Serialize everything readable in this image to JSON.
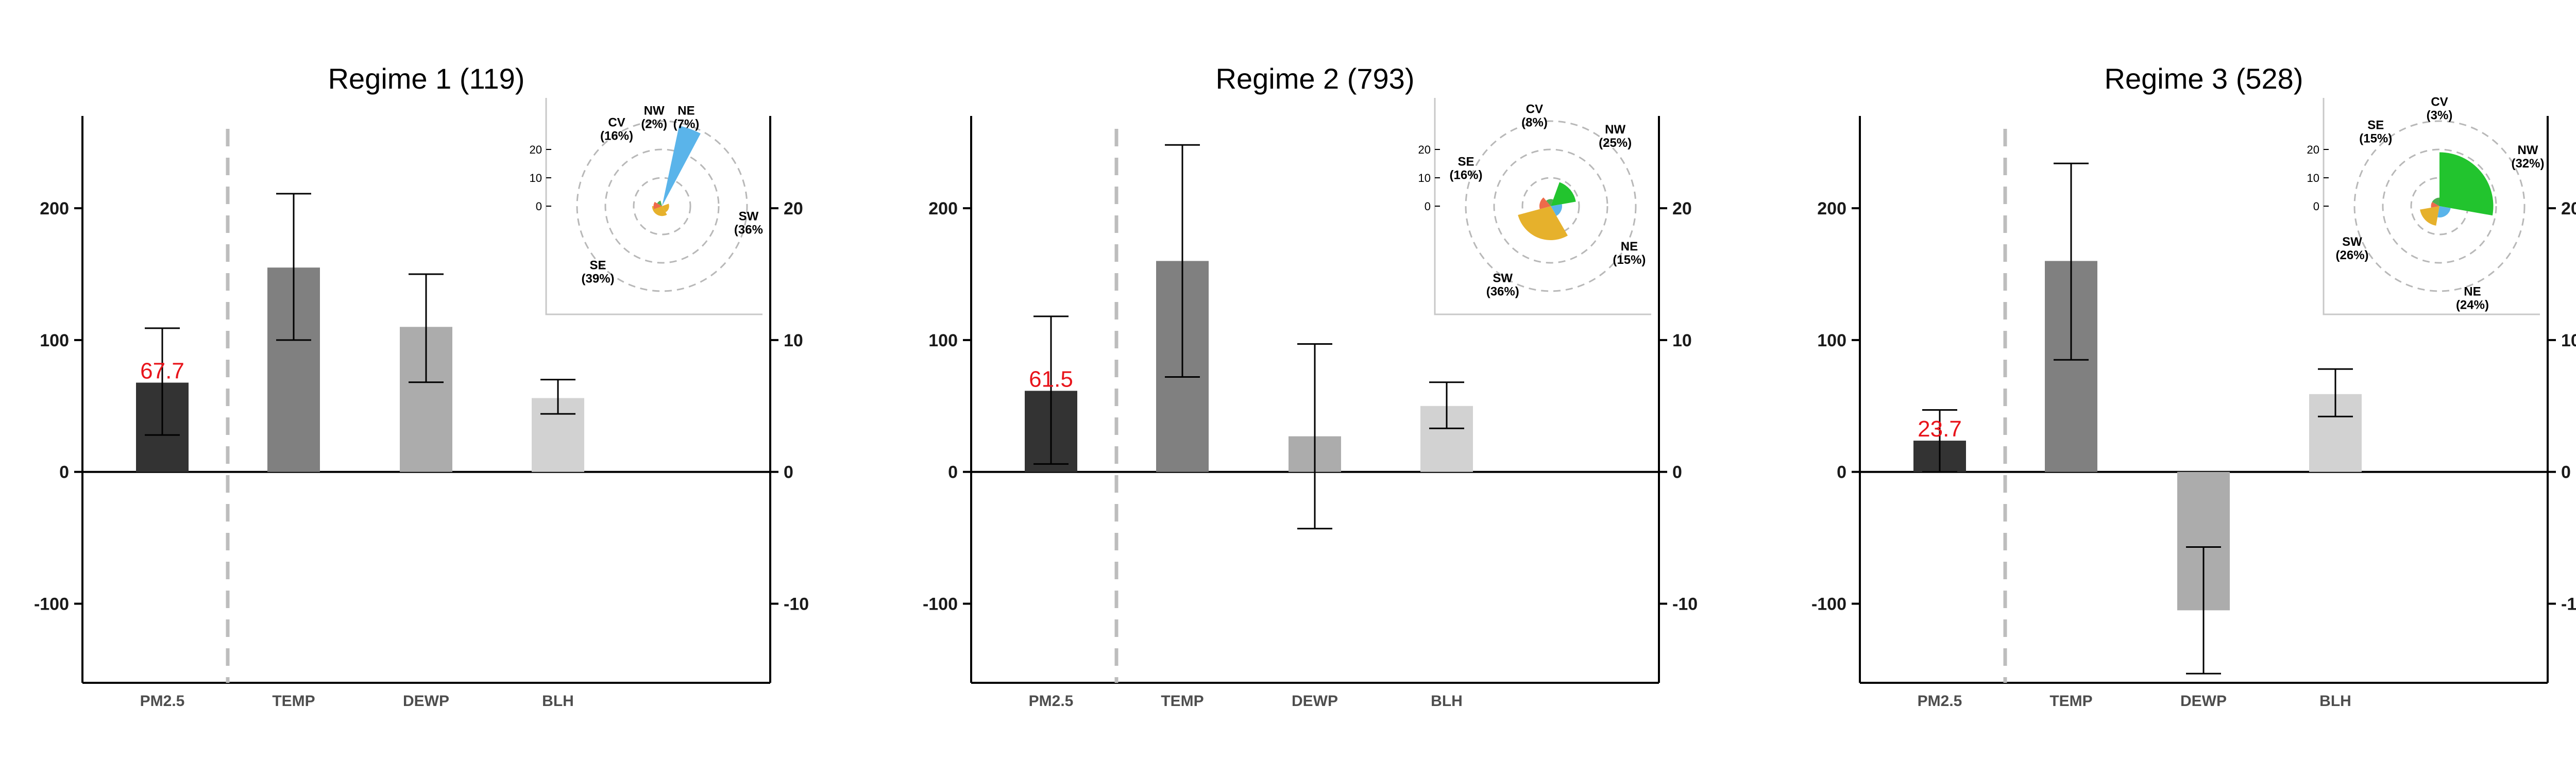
{
  "chart_data": [
    {
      "type": "bar",
      "title": "Regime 1 (119)",
      "categories": [
        "PM2.5",
        "TEMP",
        "DEWP",
        "BLH"
      ],
      "values": [
        67.7,
        155,
        110,
        56
      ],
      "error_low": [
        28,
        100,
        68,
        44
      ],
      "error_high": [
        109,
        211,
        150,
        70
      ],
      "value_label": "67.7",
      "y_left_ticks": [
        "200",
        "100",
        "0",
        "-100"
      ],
      "y_right_ticks": [
        "20",
        "10",
        "0",
        "-10"
      ],
      "ylim": [
        -160,
        270
      ],
      "y_right_lim": [
        -16,
        27
      ],
      "bar_colors": [
        "#333333",
        "#808080",
        "#acacac",
        "#d2d2d2"
      ],
      "inset": {
        "type": "rose",
        "rmax": 30,
        "r_ticks": [
          "20",
          "10",
          "0"
        ],
        "sectors": [
          {
            "start": 12,
            "end": 28,
            "r": 29,
            "color": "#5ab4ea"
          },
          {
            "start": 70,
            "end": 150,
            "r": 2.5,
            "color": "#e6b12c"
          },
          {
            "start": 150,
            "end": 270,
            "r": 3.5,
            "color": "#e6b12c"
          },
          {
            "start": 250,
            "end": 300,
            "r": 3,
            "color": "#ee6a4a"
          },
          {
            "start": 300,
            "end": 345,
            "r": 2,
            "color": "#4caf50"
          }
        ],
        "labels": [
          {
            "name": "NW",
            "pct": "(2%)",
            "angle": 355,
            "r": 32
          },
          {
            "name": "NE",
            "pct": "(7%)",
            "angle": 15,
            "r": 33
          },
          {
            "name": "CV",
            "pct": "(16%)",
            "angle": 330,
            "r": 32
          },
          {
            "name": "SW",
            "pct": "(36%",
            "angle": 100,
            "r": 31
          },
          {
            "name": "SE",
            "pct": "(39%)",
            "angle": 225,
            "r": 32
          }
        ]
      }
    },
    {
      "type": "bar",
      "title": "Regime 2 (793)",
      "categories": [
        "PM2.5",
        "TEMP",
        "DEWP",
        "BLH"
      ],
      "values": [
        61.5,
        160,
        27,
        50
      ],
      "error_low": [
        6,
        72,
        -43,
        33
      ],
      "error_high": [
        118,
        248,
        97,
        68
      ],
      "value_label": "61.5",
      "y_left_ticks": [
        "200",
        "100",
        "0",
        "-100"
      ],
      "y_right_ticks": [
        "20",
        "10",
        "0",
        "-10"
      ],
      "ylim": [
        -160,
        270
      ],
      "y_right_lim": [
        -16,
        27
      ],
      "bar_colors": [
        "#333333",
        "#808080",
        "#acacac",
        "#d2d2d2"
      ],
      "inset": {
        "type": "rose",
        "rmax": 30,
        "r_ticks": [
          "20",
          "10",
          "0"
        ],
        "sectors": [
          {
            "start": 20,
            "end": 80,
            "r": 9,
            "color": "#22c42e"
          },
          {
            "start": 80,
            "end": 150,
            "r": 4,
            "color": "#5ab4ea"
          },
          {
            "start": 150,
            "end": 255,
            "r": 12,
            "color": "#e6b12c"
          },
          {
            "start": 255,
            "end": 320,
            "r": 4,
            "color": "#ee6a4a"
          },
          {
            "start": 320,
            "end": 20,
            "r": 2.5,
            "color": "#4caf50"
          }
        ],
        "labels": [
          {
            "name": "CV",
            "pct": "(8%)",
            "angle": 350,
            "r": 33
          },
          {
            "name": "NW",
            "pct": "(25%)",
            "angle": 42,
            "r": 34
          },
          {
            "name": "SE",
            "pct": "(16%)",
            "angle": 295,
            "r": 33
          },
          {
            "name": "NE",
            "pct": "(15%)",
            "angle": 120,
            "r": 32
          },
          {
            "name": "SW",
            "pct": "(36%)",
            "angle": 212,
            "r": 32
          }
        ]
      }
    },
    {
      "type": "bar",
      "title": "Regime 3 (528)",
      "categories": [
        "PM2.5",
        "TEMP",
        "DEWP",
        "BLH"
      ],
      "values": [
        23.7,
        160,
        -105,
        59
      ],
      "error_low": [
        0,
        85,
        -153,
        42
      ],
      "error_high": [
        47,
        234,
        -57,
        78
      ],
      "value_label": "23.7",
      "y_left_ticks": [
        "200",
        "100",
        "0",
        "-100"
      ],
      "y_right_ticks": [
        "20",
        "10",
        "0",
        "-10"
      ],
      "ylim": [
        -160,
        270
      ],
      "y_right_lim": [
        -16,
        27
      ],
      "bar_colors": [
        "#333333",
        "#808080",
        "#acacac",
        "#d2d2d2"
      ],
      "inset": {
        "type": "rose",
        "rmax": 30,
        "r_ticks": [
          "20",
          "10",
          "0"
        ],
        "sectors": [
          {
            "start": 0,
            "end": 100,
            "r": 19,
            "color": "#22c42e"
          },
          {
            "start": 100,
            "end": 190,
            "r": 4,
            "color": "#5ab4ea"
          },
          {
            "start": 190,
            "end": 260,
            "r": 7,
            "color": "#e6b12c"
          },
          {
            "start": 260,
            "end": 300,
            "r": 3,
            "color": "#ee6a4a"
          },
          {
            "start": 300,
            "end": 0,
            "r": 3,
            "color": "#4caf50"
          }
        ],
        "labels": [
          {
            "name": "CV",
            "pct": "(3%)",
            "angle": 0,
            "r": 35
          },
          {
            "name": "SE",
            "pct": "(15%)",
            "angle": 320,
            "r": 35
          },
          {
            "name": "NW",
            "pct": "(32%)",
            "angle": 60,
            "r": 36
          },
          {
            "name": "SW",
            "pct": "(26%)",
            "angle": 245,
            "r": 34
          },
          {
            "name": "NE",
            "pct": "(24%)",
            "angle": 160,
            "r": 34
          }
        ]
      }
    }
  ]
}
